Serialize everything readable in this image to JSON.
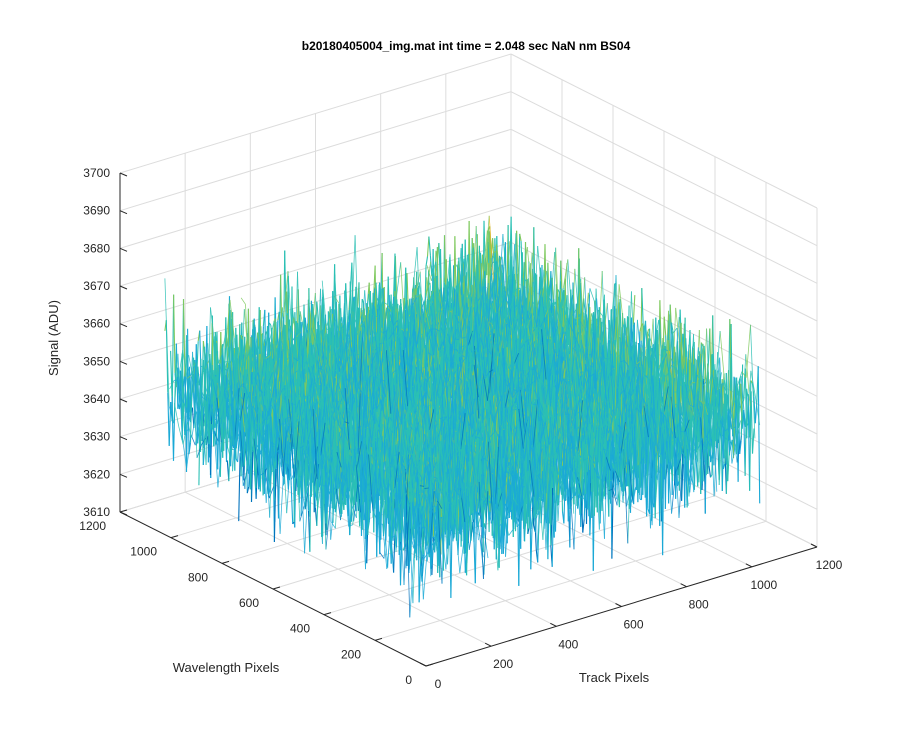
{
  "chart_data": {
    "type": "surface",
    "title": "b20180405004_img.mat int time = 2.048 sec  NaN nm BS04",
    "xlabel": "Track Pixels",
    "ylabel": "Wavelength Pixels",
    "zlabel": "Signal (ADU)",
    "xlim": [
      0,
      1200
    ],
    "ylim": [
      0,
      1200
    ],
    "zlim": [
      3610,
      3700
    ],
    "x_ticks": [
      "0",
      "200",
      "400",
      "600",
      "800",
      "1000",
      "1200"
    ],
    "y_ticks": [
      "0",
      "200",
      "400",
      "600",
      "800",
      "1000",
      "1200"
    ],
    "z_ticks": [
      "3610",
      "3620",
      "3630",
      "3640",
      "3650",
      "3660",
      "3670",
      "3680",
      "3690",
      "3700"
    ],
    "data_extent": {
      "x": [
        0,
        1024
      ],
      "y": [
        0,
        1024
      ]
    },
    "signal": {
      "mean": 3648,
      "noise_std": 9,
      "min": 3612,
      "max": 3696
    },
    "grid": true,
    "colormap": "parula",
    "colors": [
      "#0072BD",
      "#1BA9D6",
      "#2BC0B4",
      "#7FC95E",
      "#EDB120"
    ]
  }
}
